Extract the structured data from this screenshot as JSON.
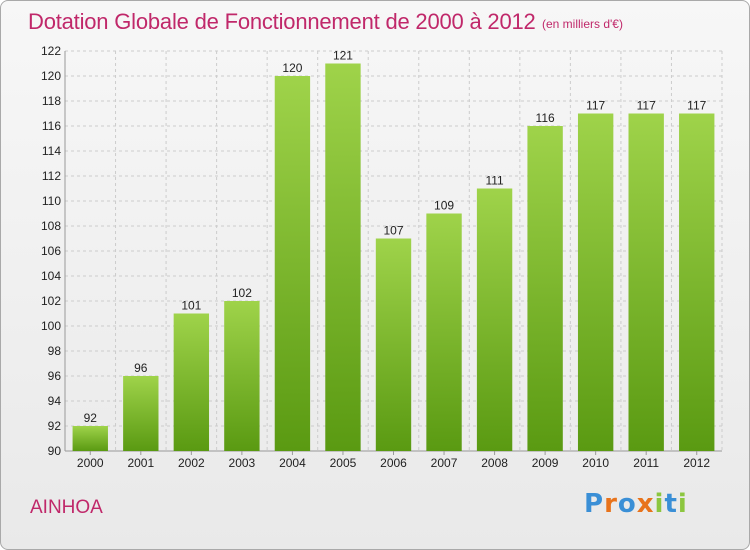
{
  "header": {
    "title": "Dotation Globale de Fonctionnement de 2000 à 2012",
    "unit": "(en milliers d'€)"
  },
  "footer": {
    "commune": "AINHOA",
    "brand": "Proxiti",
    "brand_letters": [
      {
        "char": "P",
        "color": "#3a8fd6"
      },
      {
        "char": "r",
        "color": "#e8731b"
      },
      {
        "char": "o",
        "color": "#3a8fd6"
      },
      {
        "char": "x",
        "color": "#e8731b"
      },
      {
        "char": "i",
        "color": "#8cc63f"
      },
      {
        "char": "t",
        "color": "#3a8fd6"
      },
      {
        "char": "i",
        "color": "#8cc63f"
      }
    ]
  },
  "colors": {
    "title": "#c0286a",
    "bar_light": "#9fd34a",
    "bar_dark": "#5a9a12",
    "grid": "#cccccc",
    "text": "#222222"
  },
  "chart_data": {
    "type": "bar",
    "title": "Dotation Globale de Fonctionnement de 2000 à 2012",
    "subtitle": "(en milliers d'€)",
    "categories": [
      "2000",
      "2001",
      "2002",
      "2003",
      "2004",
      "2005",
      "2006",
      "2007",
      "2008",
      "2009",
      "2010",
      "2011",
      "2012"
    ],
    "values": [
      92,
      96,
      101,
      102,
      120,
      121,
      107,
      109,
      111,
      116,
      117,
      117,
      117
    ],
    "ylim": [
      90,
      122
    ],
    "yticks": [
      90,
      92,
      94,
      96,
      98,
      100,
      102,
      104,
      106,
      108,
      110,
      112,
      114,
      116,
      118,
      120,
      122
    ],
    "grid": true,
    "data_labels": true
  }
}
